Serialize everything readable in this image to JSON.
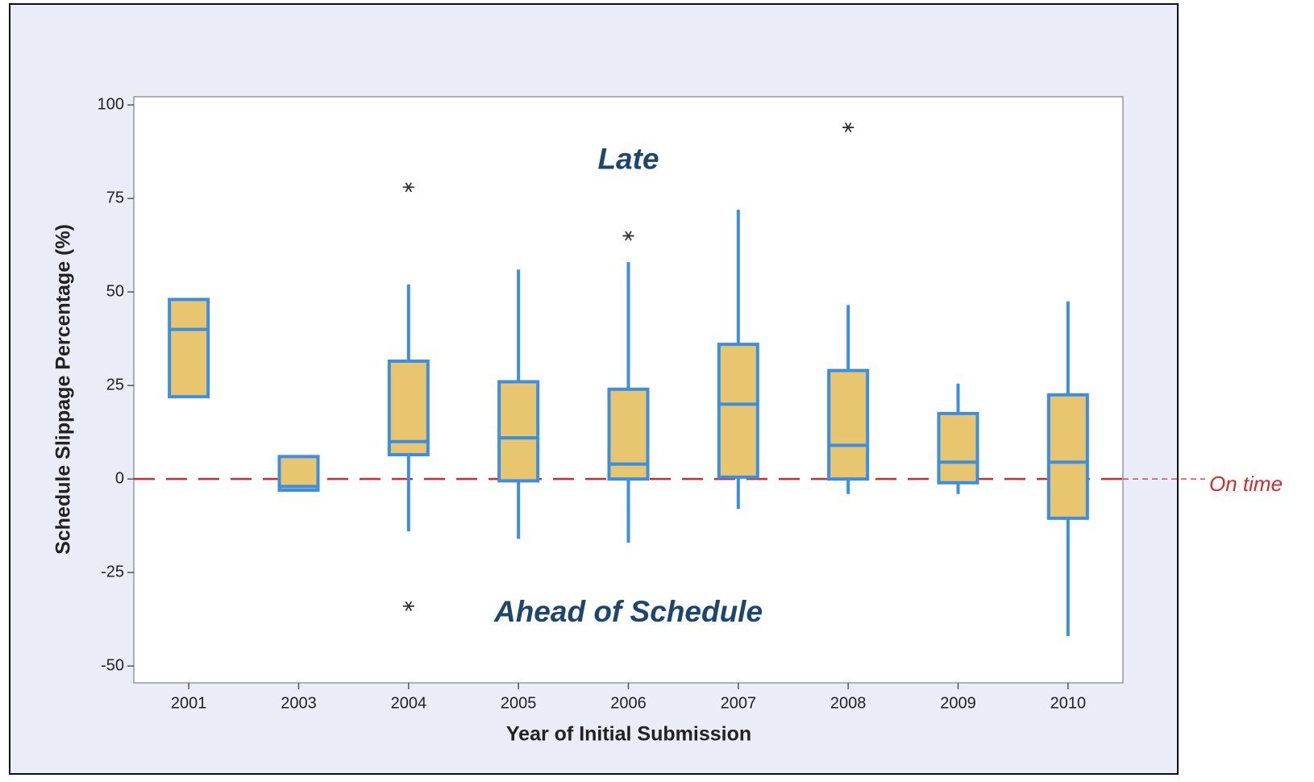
{
  "chart_data": {
    "type": "box",
    "x_label": "Year of Initial Submission",
    "y_label": "Schedule Slippage Percentage (%)",
    "categories": [
      "2001",
      "2003",
      "2004",
      "2005",
      "2006",
      "2007",
      "2008",
      "2009",
      "2010"
    ],
    "boxes": [
      {
        "min": 22,
        "q1": 22,
        "median": 40,
        "q3": 48,
        "max": 48,
        "outliers": []
      },
      {
        "min": -3,
        "q1": -3,
        "median": -2,
        "q3": 6,
        "max": 6,
        "outliers": []
      },
      {
        "min": -14,
        "q1": 6.5,
        "median": 10,
        "q3": 31.5,
        "max": 52,
        "outliers": [
          78,
          -34
        ]
      },
      {
        "min": -16,
        "q1": -0.5,
        "median": 11,
        "q3": 26,
        "max": 56,
        "outliers": []
      },
      {
        "min": -17,
        "q1": 0,
        "median": 4,
        "q3": 24,
        "max": 58,
        "outliers": [
          65
        ]
      },
      {
        "min": -8,
        "q1": 0.5,
        "median": 20,
        "q3": 36,
        "max": 72,
        "outliers": []
      },
      {
        "min": -4,
        "q1": 0,
        "median": 9,
        "q3": 29,
        "max": 46.5,
        "outliers": [
          94
        ]
      },
      {
        "min": -4,
        "q1": -1,
        "median": 4.5,
        "q3": 17.5,
        "max": 25.5,
        "outliers": []
      },
      {
        "min": -42,
        "q1": -10.5,
        "median": 4.5,
        "q3": 22.5,
        "max": 47.5,
        "outliers": []
      }
    ],
    "box_color": "#e8c56f",
    "line_color": "#3b8ee2",
    "ylim": [
      -54.5,
      102.2
    ],
    "yticks": [
      -50,
      -25,
      0,
      25,
      50,
      75,
      100
    ],
    "reference_line": {
      "value": 0,
      "label": "On time",
      "color": "#d22b2b"
    },
    "annotations": [
      {
        "text": "Late",
        "x": 4,
        "y": 85
      },
      {
        "text": "Ahead of Schedule",
        "x": 4,
        "y": -36
      }
    ],
    "grid": false
  }
}
